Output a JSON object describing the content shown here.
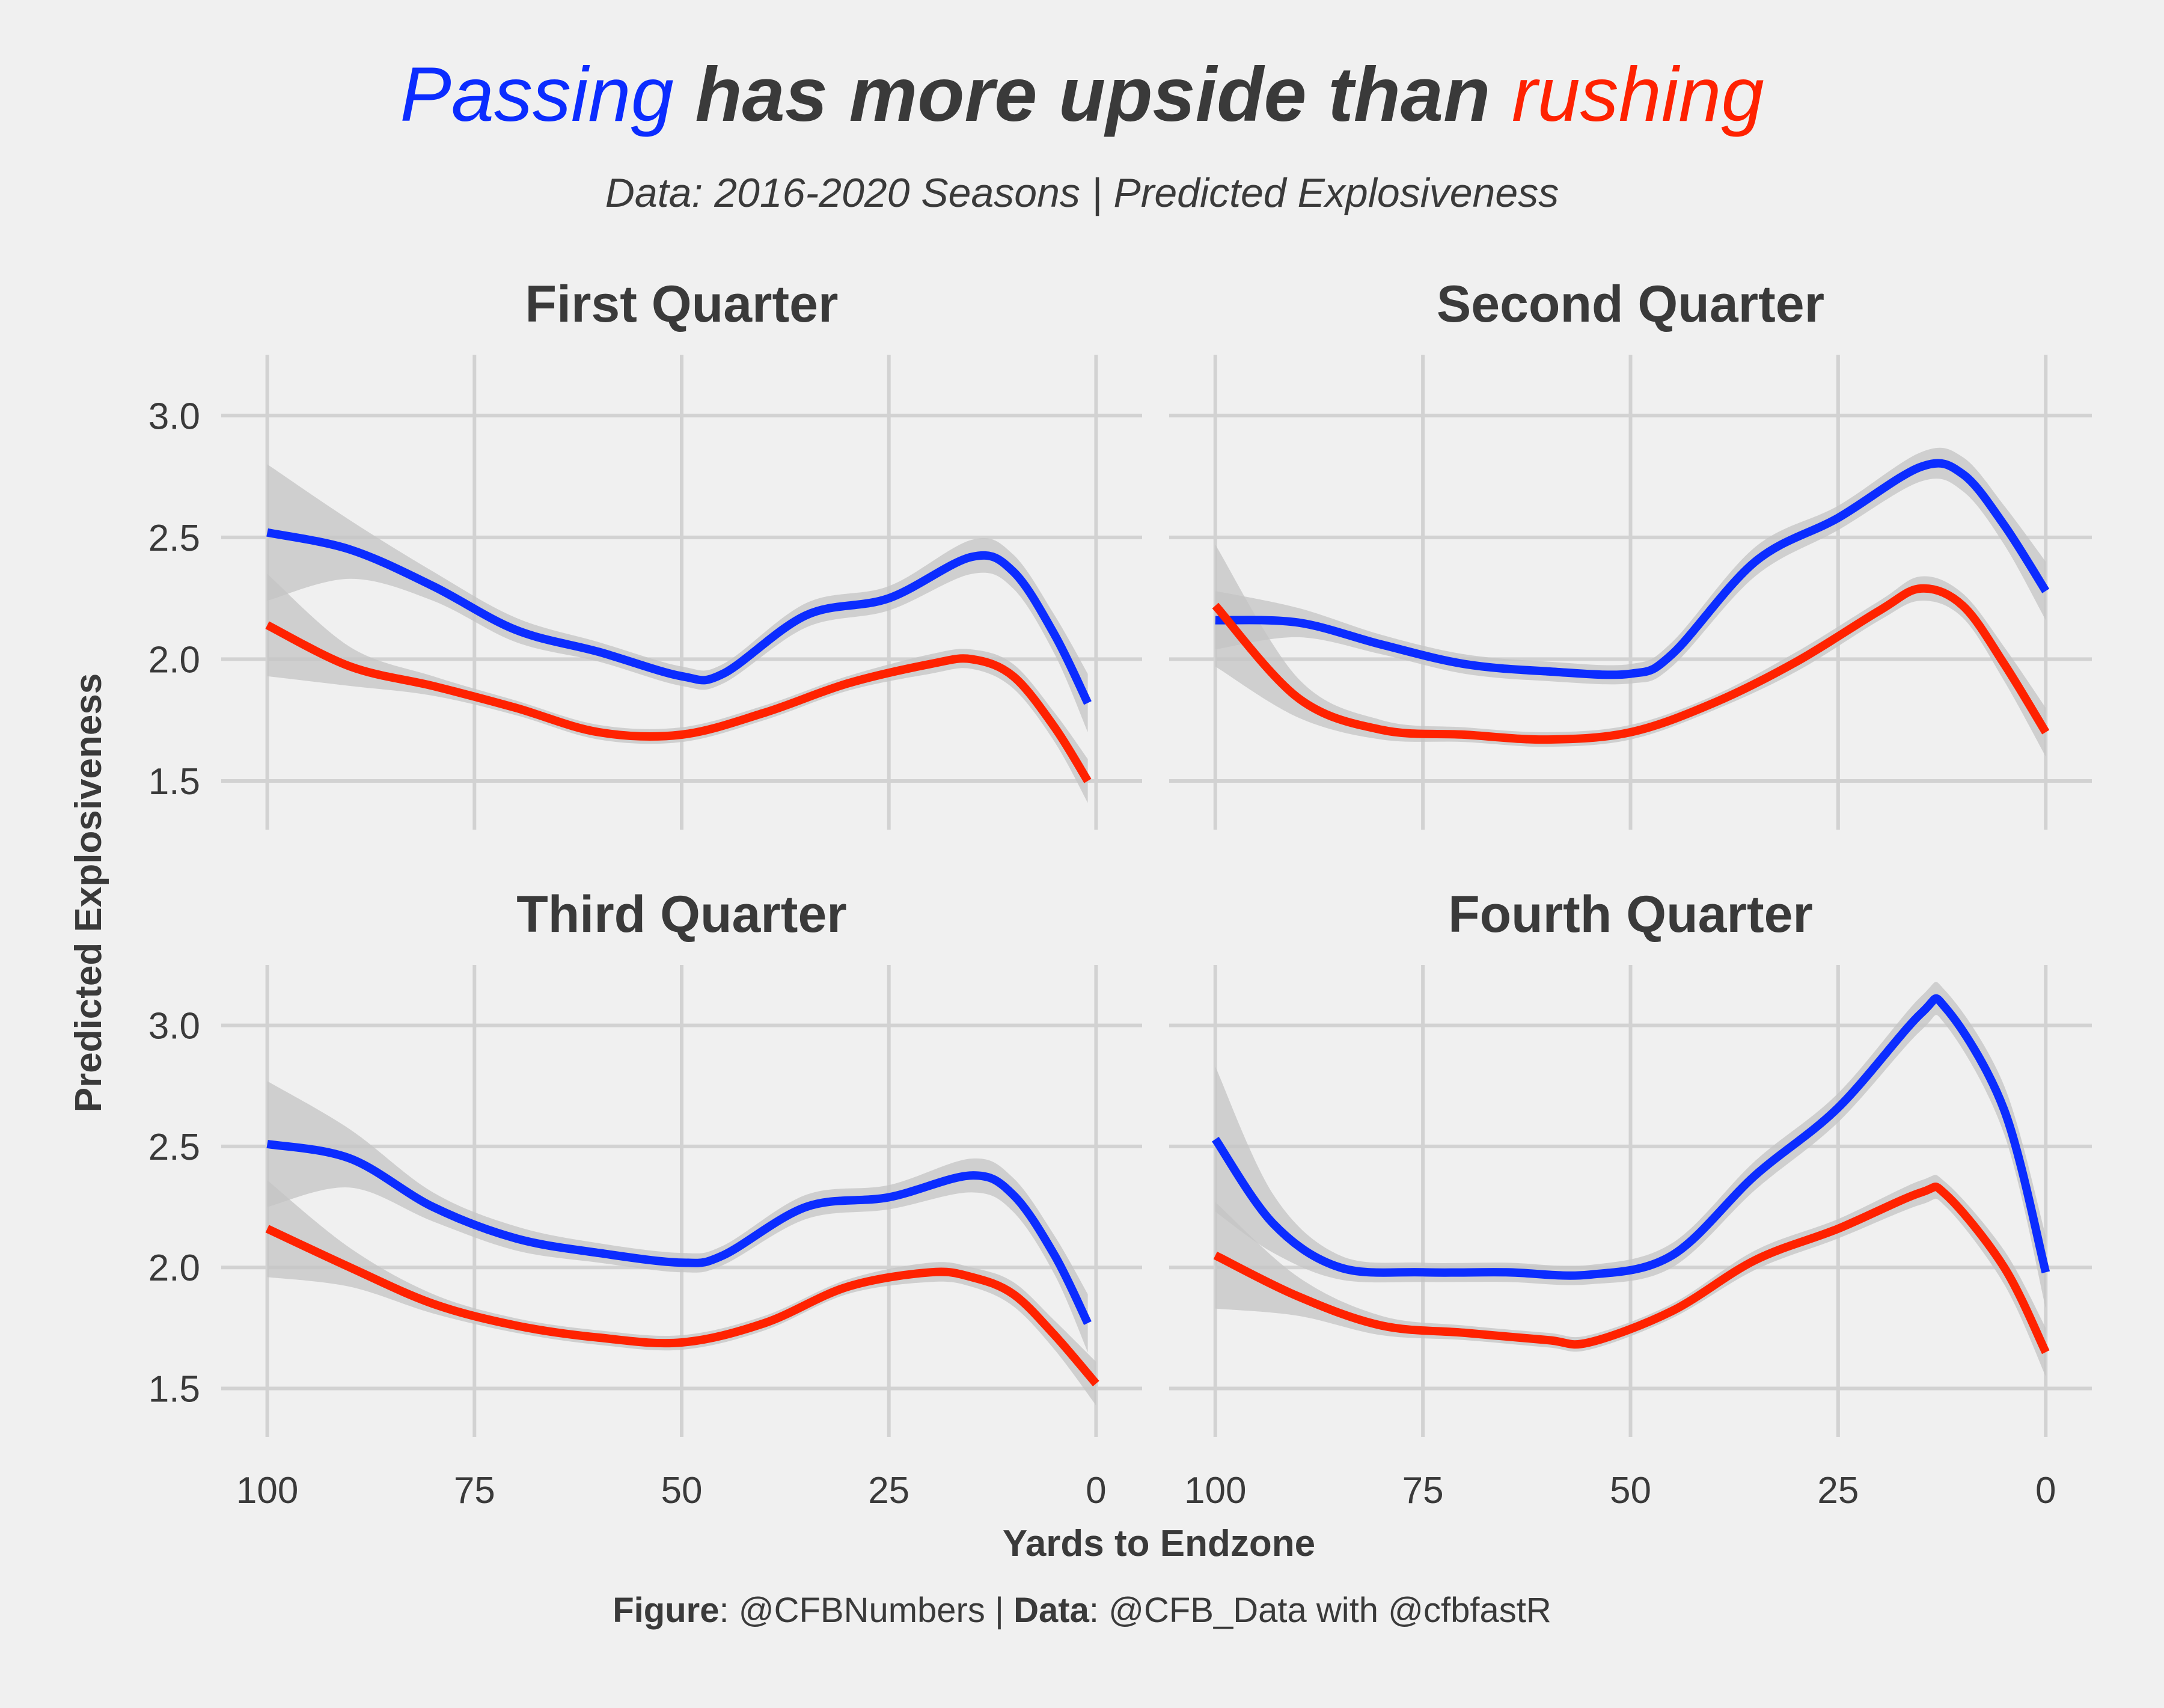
{
  "title": {
    "part1": "Passing",
    "part2": " has more upside than ",
    "part3": "rushing"
  },
  "subtitle": "Data: 2016-2020 Seasons | Predicted Explosiveness",
  "caption": {
    "figure_label": "Figure",
    "figure_value": ": @CFBNumbers | ",
    "data_label": "Data",
    "data_value": ": @CFB_Data with @cfbfastR"
  },
  "colors": {
    "passing": "#0b2cff",
    "rushing": "#ff2200",
    "ribbon": "#c4c4c4",
    "grid": "#d2d2d2",
    "background": "#f0f0f0"
  },
  "chart_data": {
    "type": "line",
    "title": "Passing has more upside than rushing",
    "subtitle": "Data: 2016-2020 Seasons | Predicted Explosiveness",
    "xlabel": "Yards to Endzone",
    "ylabel": "Predicted Explosiveness",
    "x_reversed": true,
    "xlim": [
      100,
      0
    ],
    "ylim": [
      1.3,
      3.25
    ],
    "xticks": [
      100,
      75,
      50,
      25,
      0
    ],
    "yticks": [
      1.5,
      2.0,
      2.5,
      3.0
    ],
    "ytick_labels": [
      "1.5",
      "2.0",
      "2.5",
      "3.0"
    ],
    "grid": true,
    "legend": "none",
    "panels": [
      {
        "title": "First Quarter",
        "series": [
          {
            "color": "#0b2cff",
            "x": [
              100,
              90,
              80,
              70,
              60,
              50,
              45,
              35,
              25,
              15,
              10,
              5,
              1
            ],
            "y": [
              2.52,
              2.45,
              2.3,
              2.12,
              2.03,
              1.93,
              1.94,
              2.18,
              2.25,
              2.42,
              2.36,
              2.1,
              1.82
            ],
            "band": [
              0.28,
              0.12,
              0.06,
              0.05,
              0.04,
              0.04,
              0.04,
              0.05,
              0.05,
              0.07,
              0.07,
              0.08,
              0.12
            ]
          },
          {
            "color": "#ff2200",
            "x": [
              100,
              90,
              80,
              70,
              60,
              50,
              40,
              30,
              20,
              15,
              10,
              5,
              1
            ],
            "y": [
              2.14,
              1.97,
              1.89,
              1.8,
              1.7,
              1.69,
              1.78,
              1.9,
              1.98,
              2.0,
              1.93,
              1.72,
              1.5
            ],
            "band": [
              0.21,
              0.08,
              0.04,
              0.03,
              0.03,
              0.03,
              0.03,
              0.03,
              0.04,
              0.04,
              0.05,
              0.06,
              0.09
            ]
          }
        ]
      },
      {
        "title": "Second Quarter",
        "series": [
          {
            "color": "#0b2cff",
            "x": [
              100,
              90,
              80,
              70,
              60,
              50,
              45,
              35,
              25,
              15,
              10,
              5,
              0
            ],
            "y": [
              2.16,
              2.15,
              2.06,
              1.98,
              1.95,
              1.94,
              2.02,
              2.4,
              2.58,
              2.79,
              2.76,
              2.55,
              2.28
            ],
            "band": [
              0.12,
              0.06,
              0.04,
              0.04,
              0.04,
              0.04,
              0.05,
              0.06,
              0.05,
              0.06,
              0.07,
              0.08,
              0.12
            ]
          },
          {
            "color": "#ff2200",
            "x": [
              100,
              90,
              80,
              70,
              60,
              50,
              40,
              30,
              20,
              15,
              10,
              5,
              0
            ],
            "y": [
              2.22,
              1.84,
              1.71,
              1.69,
              1.67,
              1.7,
              1.82,
              1.99,
              2.2,
              2.29,
              2.22,
              1.98,
              1.7
            ],
            "band": [
              0.25,
              0.08,
              0.04,
              0.03,
              0.03,
              0.03,
              0.03,
              0.04,
              0.04,
              0.05,
              0.05,
              0.07,
              0.1
            ]
          }
        ]
      },
      {
        "title": "Third Quarter",
        "series": [
          {
            "color": "#0b2cff",
            "x": [
              100,
              90,
              80,
              70,
              60,
              50,
              45,
              35,
              25,
              15,
              10,
              5,
              1
            ],
            "y": [
              2.51,
              2.45,
              2.25,
              2.12,
              2.06,
              2.02,
              2.05,
              2.25,
              2.29,
              2.38,
              2.3,
              2.05,
              1.77
            ],
            "band": [
              0.26,
              0.12,
              0.06,
              0.05,
              0.04,
              0.04,
              0.04,
              0.05,
              0.05,
              0.07,
              0.07,
              0.08,
              0.12
            ]
          },
          {
            "color": "#ff2200",
            "x": [
              100,
              90,
              80,
              70,
              60,
              50,
              40,
              30,
              20,
              15,
              10,
              5,
              0
            ],
            "y": [
              2.16,
              2.0,
              1.85,
              1.76,
              1.71,
              1.69,
              1.77,
              1.92,
              1.98,
              1.96,
              1.89,
              1.72,
              1.52
            ],
            "band": [
              0.2,
              0.08,
              0.04,
              0.03,
              0.03,
              0.03,
              0.03,
              0.03,
              0.04,
              0.04,
              0.05,
              0.06,
              0.09
            ]
          }
        ]
      },
      {
        "title": "Fourth Quarter",
        "series": [
          {
            "color": "#0b2cff",
            "x": [
              100,
              93,
              85,
              75,
              65,
              55,
              45,
              35,
              25,
              15,
              12,
              5,
              0
            ],
            "y": [
              2.53,
              2.18,
              2.0,
              1.98,
              1.98,
              1.97,
              2.05,
              2.38,
              2.66,
              3.05,
              3.07,
              2.65,
              1.98
            ],
            "band": [
              0.3,
              0.12,
              0.05,
              0.04,
              0.04,
              0.04,
              0.05,
              0.06,
              0.06,
              0.07,
              0.07,
              0.1,
              0.15
            ]
          },
          {
            "color": "#ff2200",
            "x": [
              100,
              90,
              80,
              70,
              60,
              55,
              45,
              35,
              25,
              15,
              12,
              5,
              0
            ],
            "y": [
              2.05,
              1.88,
              1.76,
              1.73,
              1.7,
              1.69,
              1.82,
              2.03,
              2.16,
              2.31,
              2.3,
              2.0,
              1.65
            ],
            "band": [
              0.22,
              0.08,
              0.04,
              0.03,
              0.03,
              0.03,
              0.03,
              0.04,
              0.04,
              0.05,
              0.05,
              0.07,
              0.1
            ]
          }
        ]
      }
    ]
  }
}
